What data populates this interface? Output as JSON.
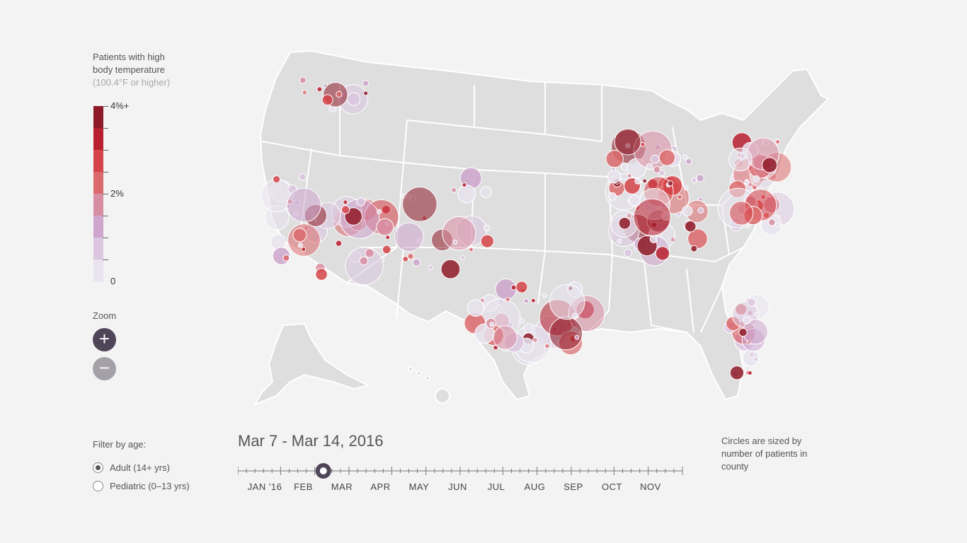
{
  "legend": {
    "title_line1": "Patients with high",
    "title_line2": "body temperature",
    "subtitle": "(100.4°F or higher)",
    "scale_colors": [
      "#8e1a28",
      "#b8202f",
      "#d54449",
      "#dc6a6c",
      "#d88ea2",
      "#cda5cd",
      "#dbc6df",
      "#e8e3ee"
    ],
    "scale_labels": {
      "max": "4%+",
      "mid": "2%",
      "min": "0"
    }
  },
  "zoom": {
    "label": "Zoom",
    "in_symbol": "+",
    "out_symbol": "−"
  },
  "filter": {
    "title": "Filter by age:",
    "options": [
      {
        "label": "Adult (14+ yrs)",
        "checked": true
      },
      {
        "label": "Pediatric (0–13 yrs)",
        "checked": false
      }
    ]
  },
  "timeline": {
    "date_range": "Mar 7 - Mar 14, 2016",
    "months": [
      "JAN '16",
      "FEB",
      "MAR",
      "APR",
      "MAY",
      "JUN",
      "JUL",
      "AUG",
      "SEP",
      "OCT",
      "NOV"
    ],
    "selected_week": 10,
    "total_weeks": 52
  },
  "note": "Circles are sized by number of patients in county",
  "map": {
    "land_color": "#dedede",
    "border_color": "#ffffff",
    "description_colors": {
      "low": "#e0dbea",
      "high": "#8e1a28"
    }
  }
}
